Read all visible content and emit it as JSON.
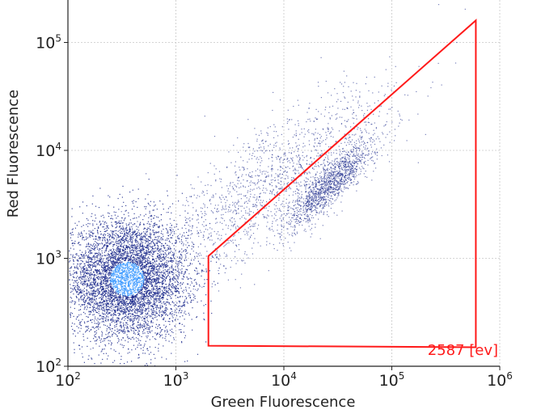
{
  "chart_data": {
    "type": "scatter",
    "xlabel": "Green Fluorescence",
    "ylabel": "Red Fluorescence",
    "x_scale": "log",
    "y_scale": "log",
    "xlim": [
      100,
      1000000
    ],
    "ylim": [
      100,
      250000
    ],
    "grid": true,
    "x_ticks": [
      {
        "base": "10",
        "exp": "2",
        "value": 100
      },
      {
        "base": "10",
        "exp": "3",
        "value": 1000
      },
      {
        "base": "10",
        "exp": "4",
        "value": 10000
      },
      {
        "base": "10",
        "exp": "5",
        "value": 100000
      },
      {
        "base": "10",
        "exp": "6",
        "value": 1000000
      }
    ],
    "y_ticks": [
      {
        "base": "10",
        "exp": "2",
        "value": 100
      },
      {
        "base": "10",
        "exp": "3",
        "value": 1000
      },
      {
        "base": "10",
        "exp": "4",
        "value": 10000
      },
      {
        "base": "10",
        "exp": "5",
        "value": 100000
      }
    ],
    "populations": [
      {
        "center": [
          350,
          650
        ],
        "spread_decades": [
          0.28,
          0.28
        ],
        "density": "very high"
      },
      {
        "center": [
          27000,
          5000
        ],
        "spread_decades": [
          0.2,
          0.1
        ],
        "density": "medium"
      },
      {
        "center": [
          8000,
          5000
        ],
        "spread_decades": [
          0.55,
          0.45
        ],
        "density": "low"
      }
    ],
    "gate": {
      "shape": "polygon",
      "vertices": [
        [
          2000,
          155
        ],
        [
          600000,
          150
        ],
        [
          600000,
          160000
        ],
        [
          2000,
          1050
        ]
      ],
      "color": "#ff1a1a",
      "count_label": "2587 [ev]"
    },
    "colors": {
      "point_low": "#1c2a8c",
      "point_high": "#3f9bff",
      "grid": "#c8c8c8",
      "axis": "#222222"
    }
  }
}
